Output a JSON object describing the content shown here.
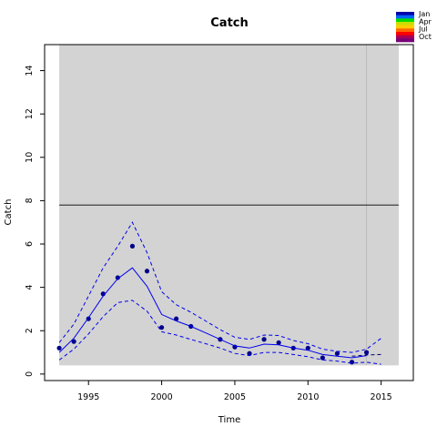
{
  "chart_data": {
    "type": "line",
    "title": "Catch",
    "xlabel": "Time",
    "ylabel": "Catch",
    "xlim": [
      1992.0,
      2017.2
    ],
    "ylim": [
      -0.3,
      15.2
    ],
    "x_ticks": [
      1995,
      2000,
      2005,
      2010,
      2015
    ],
    "y_ticks": [
      0,
      2,
      4,
      6,
      8,
      10,
      12,
      14
    ],
    "shaded_region_x": [
      1993,
      2016.2
    ],
    "shaded_region_y": [
      0.4,
      15.2
    ],
    "vertical_line_x": 2014,
    "reference_line_y": 7.8,
    "grid": false,
    "legend_position": "top-right",
    "legend": [
      {
        "label": "Jan",
        "color": "#0000cc"
      },
      {
        "label": "Apr",
        "color": "#00cc00"
      },
      {
        "label": "Jul",
        "color": "#ff8800"
      },
      {
        "label": "Oct",
        "color": "#880066"
      }
    ],
    "legend_gradient": [
      "#0000aa",
      "#0066ff",
      "#00dd00",
      "#ccdd00",
      "#ffcc00",
      "#ff6600",
      "#ff0000",
      "#aa0055",
      "#770077"
    ],
    "series": [
      {
        "kind": "observed",
        "color": "#00008b",
        "points": [
          [
            1993,
            1.2
          ],
          [
            1994,
            1.5
          ],
          [
            1995,
            2.55
          ],
          [
            1996,
            3.7
          ],
          [
            1997,
            4.45
          ],
          [
            1998,
            5.9
          ],
          [
            1999,
            4.75
          ],
          [
            2000,
            2.15
          ],
          [
            2001,
            2.55
          ],
          [
            2002,
            2.2
          ],
          [
            2004,
            1.6
          ],
          [
            2005,
            1.25
          ],
          [
            2006,
            0.95
          ],
          [
            2007,
            1.6
          ],
          [
            2008,
            1.45
          ],
          [
            2009,
            1.2
          ],
          [
            2010,
            1.2
          ],
          [
            2011,
            0.75
          ],
          [
            2012,
            0.95
          ],
          [
            2013,
            0.55
          ],
          [
            2014,
            1.0
          ]
        ]
      },
      {
        "kind": "fitted",
        "color": "#0000ee",
        "dash": false,
        "points": [
          [
            1993,
            1.0
          ],
          [
            1994,
            1.65
          ],
          [
            1995,
            2.6
          ],
          [
            1996,
            3.6
          ],
          [
            1997,
            4.4
          ],
          [
            1998,
            4.9
          ],
          [
            1999,
            4.05
          ],
          [
            2000,
            2.75
          ],
          [
            2001,
            2.45
          ],
          [
            2002,
            2.2
          ],
          [
            2003,
            1.9
          ],
          [
            2004,
            1.6
          ],
          [
            2005,
            1.3
          ],
          [
            2006,
            1.2
          ],
          [
            2007,
            1.38
          ],
          [
            2008,
            1.35
          ],
          [
            2009,
            1.2
          ],
          [
            2010,
            1.1
          ],
          [
            2011,
            0.9
          ],
          [
            2012,
            0.82
          ],
          [
            2013,
            0.75
          ],
          [
            2014,
            0.85
          ]
        ]
      },
      {
        "kind": "upper",
        "color": "#0000ee",
        "dash": true,
        "points": [
          [
            1993,
            1.45
          ],
          [
            1994,
            2.3
          ],
          [
            1995,
            3.6
          ],
          [
            1996,
            4.9
          ],
          [
            1997,
            5.9
          ],
          [
            1998,
            7.0
          ],
          [
            1999,
            5.6
          ],
          [
            2000,
            3.8
          ],
          [
            2001,
            3.2
          ],
          [
            2002,
            2.85
          ],
          [
            2003,
            2.45
          ],
          [
            2004,
            2.05
          ],
          [
            2005,
            1.7
          ],
          [
            2006,
            1.6
          ],
          [
            2007,
            1.8
          ],
          [
            2008,
            1.78
          ],
          [
            2009,
            1.55
          ],
          [
            2010,
            1.4
          ],
          [
            2011,
            1.15
          ],
          [
            2012,
            1.05
          ],
          [
            2013,
            1.0
          ],
          [
            2014,
            1.15
          ],
          [
            2015,
            1.65
          ]
        ]
      },
      {
        "kind": "lower",
        "color": "#0000ee",
        "dash": true,
        "points": [
          [
            1993,
            0.65
          ],
          [
            1994,
            1.15
          ],
          [
            1995,
            1.85
          ],
          [
            1996,
            2.65
          ],
          [
            1997,
            3.3
          ],
          [
            1998,
            3.4
          ],
          [
            1999,
            2.9
          ],
          [
            2000,
            1.95
          ],
          [
            2001,
            1.8
          ],
          [
            2002,
            1.6
          ],
          [
            2003,
            1.4
          ],
          [
            2004,
            1.2
          ],
          [
            2005,
            0.95
          ],
          [
            2006,
            0.85
          ],
          [
            2007,
            1.0
          ],
          [
            2008,
            1.0
          ],
          [
            2009,
            0.9
          ],
          [
            2010,
            0.8
          ],
          [
            2011,
            0.65
          ],
          [
            2012,
            0.6
          ],
          [
            2013,
            0.5
          ],
          [
            2014,
            0.55
          ],
          [
            2015,
            0.45
          ]
        ]
      },
      {
        "kind": "projection",
        "color": "#000066",
        "dash": true,
        "points": [
          [
            2013,
            0.82
          ],
          [
            2014,
            0.88
          ],
          [
            2015,
            0.9
          ]
        ]
      }
    ]
  }
}
